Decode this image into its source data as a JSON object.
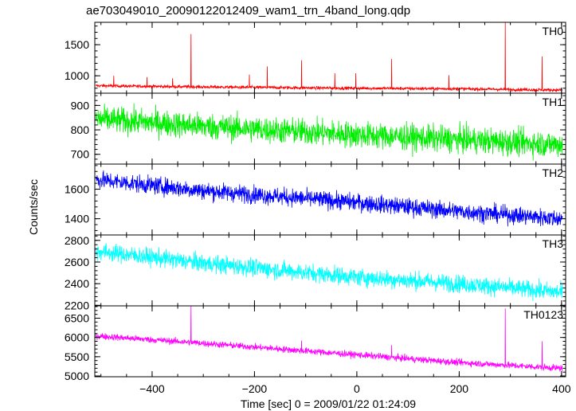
{
  "chart_data": {
    "type": "line",
    "title": "ae703049010_20090122012409_wam1_trn_4band_long.qdp",
    "xlabel": "Time [sec] 0 = 2009/01/22 01:24:09",
    "ylabel": "Counts/sec",
    "xlim": [
      -512,
      408
    ],
    "x_ticks": [
      -400,
      -200,
      0,
      200,
      400
    ],
    "x_tick_labels": [
      "−400",
      "−200",
      "0",
      "200",
      "400"
    ],
    "grid": false,
    "legend": "none",
    "panels": [
      {
        "name": "TH0",
        "color": "#ff0000",
        "ylim": [
          720,
          1860
        ],
        "y_ticks": [
          1000,
          1500
        ],
        "baseline": [
          [
            -510,
            840
          ],
          [
            -300,
            820
          ],
          [
            0,
            800
          ],
          [
            200,
            790
          ],
          [
            400,
            770
          ]
        ],
        "noise": 18,
        "spikes": [
          [
            -475,
            1000
          ],
          [
            -410,
            980
          ],
          [
            -360,
            960
          ],
          [
            -324,
            1670
          ],
          [
            -210,
            1020
          ],
          [
            -175,
            1150
          ],
          [
            -108,
            1250
          ],
          [
            -43,
            1040
          ],
          [
            -2,
            1040
          ],
          [
            68,
            1270
          ],
          [
            180,
            1010
          ],
          [
            290,
            1860
          ],
          [
            362,
            1310
          ]
        ]
      },
      {
        "name": "TH1",
        "color": "#00ee00",
        "ylim": [
          660,
          950
        ],
        "y_ticks": [
          700,
          800,
          900
        ],
        "baseline": [
          [
            -510,
            845
          ],
          [
            -300,
            815
          ],
          [
            0,
            780
          ],
          [
            200,
            760
          ],
          [
            400,
            740
          ]
        ],
        "noise": 38,
        "spikes": []
      },
      {
        "name": "TH2",
        "color": "#0000ff",
        "ylim": [
          1290,
          1770
        ],
        "y_ticks": [
          1400,
          1600
        ],
        "baseline": [
          [
            -510,
            1665
          ],
          [
            -300,
            1590
          ],
          [
            0,
            1510
          ],
          [
            200,
            1450
          ],
          [
            400,
            1400
          ]
        ],
        "noise": 42,
        "spikes": []
      },
      {
        "name": "TH3",
        "color": "#00ffff",
        "ylim": [
          2195,
          2850
        ],
        "y_ticks": [
          2200,
          2400,
          2600,
          2800
        ],
        "baseline": [
          [
            -510,
            2700
          ],
          [
            -300,
            2590
          ],
          [
            0,
            2460
          ],
          [
            200,
            2400
          ],
          [
            400,
            2320
          ]
        ],
        "noise": 58,
        "spikes": []
      },
      {
        "name": "TH0123",
        "color": "#ff00ff",
        "ylim": [
          4980,
          6820
        ],
        "y_ticks": [
          5000,
          5500,
          6000,
          6500
        ],
        "baseline": [
          [
            -510,
            6040
          ],
          [
            -300,
            5850
          ],
          [
            0,
            5550
          ],
          [
            200,
            5350
          ],
          [
            400,
            5200
          ]
        ],
        "noise": 60,
        "spikes": [
          [
            -324,
            6820
          ],
          [
            -108,
            5920
          ],
          [
            68,
            5800
          ],
          [
            290,
            6750
          ],
          [
            362,
            5900
          ]
        ]
      }
    ]
  }
}
